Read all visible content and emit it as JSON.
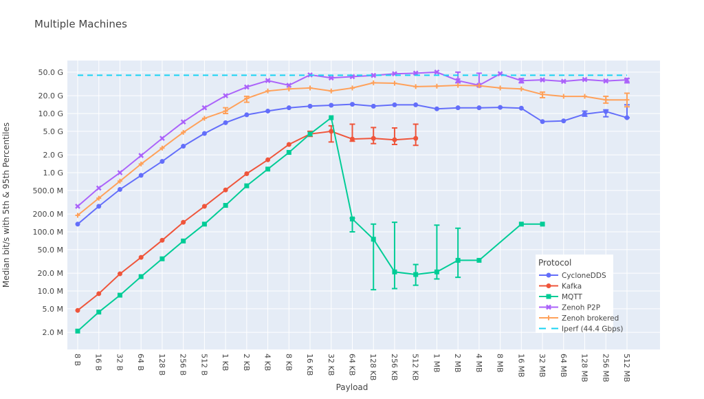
{
  "chart_data": {
    "type": "line",
    "title": "Multiple Machines",
    "xlabel": "Payload",
    "ylabel": "Median bit/s with 5th & 95th Percentiles",
    "yscale": "log",
    "ylim": [
      1500000.0,
      80000000000.0
    ],
    "categories": [
      "8 B",
      "16 B",
      "32 B",
      "64 B",
      "128 B",
      "256 B",
      "512 B",
      "1 KB",
      "2 KB",
      "4 KB",
      "8 KB",
      "16 KB",
      "32 KB",
      "64 KB",
      "128 KB",
      "256 KB",
      "512 KB",
      "1 MB",
      "2 MB",
      "4 MB",
      "8 MB",
      "16 MB",
      "32 MB",
      "64 MB",
      "128 MB",
      "256 MB",
      "512 MB"
    ],
    "yticks": [
      {
        "v": 50000000000.0,
        "label": "50.0 G"
      },
      {
        "v": 20000000000.0,
        "label": "20.0 G"
      },
      {
        "v": 10000000000.0,
        "label": "10.0 G"
      },
      {
        "v": 5000000000.0,
        "label": "5.0 G"
      },
      {
        "v": 2000000000.0,
        "label": "2.0 G"
      },
      {
        "v": 1000000000.0,
        "label": "1.0 G"
      },
      {
        "v": 500000000.0,
        "label": "500.0 M"
      },
      {
        "v": 200000000.0,
        "label": "200.0 M"
      },
      {
        "v": 100000000.0,
        "label": "100.0 M"
      },
      {
        "v": 50000000.0,
        "label": "50.0 M"
      },
      {
        "v": 20000000.0,
        "label": "20.0 M"
      },
      {
        "v": 10000000.0,
        "label": "10.0 M"
      },
      {
        "v": 5000000.0,
        "label": "5.0 M"
      },
      {
        "v": 2000000.0,
        "label": "2.0 M"
      }
    ],
    "legend_title": "Protocol",
    "legend_position": "bottom-right",
    "series": [
      {
        "name": "CycloneDDS",
        "color": "#636efa",
        "marker": "circle",
        "values": [
          135000000.0,
          270000000.0,
          520000000.0,
          900000000.0,
          1550000000.0,
          2800000000.0,
          4600000000.0,
          7000000000.0,
          9500000000.0,
          11000000000.0,
          12500000000.0,
          13300000000.0,
          13800000000.0,
          14300000000.0,
          13300000000.0,
          14000000000.0,
          14000000000.0,
          12000000000.0,
          12500000000.0,
          12500000000.0,
          12700000000.0,
          12300000000.0,
          7300000000.0,
          7500000000.0,
          9800000000.0,
          10800000000.0,
          8500000000.0
        ],
        "errors": {
          "24": [
            9000000000.0,
            11000000000.0
          ],
          "25": [
            8800000000.0,
            11500000000.0
          ],
          "26": [
            8500000000.0,
            14000000000.0
          ]
        }
      },
      {
        "name": "Kafka",
        "color": "#ef553b",
        "marker": "circle",
        "values": [
          4700000.0,
          9000000.0,
          19500000.0,
          37000000.0,
          72000000.0,
          145000000.0,
          270000000.0,
          510000000.0,
          960000000.0,
          1650000000.0,
          3000000000.0,
          4500000000.0,
          5000000000.0,
          3700000000.0,
          3800000000.0,
          3600000000.0,
          3800000000.0,
          null,
          null,
          null,
          null,
          null,
          null,
          null,
          null,
          null,
          null
        ],
        "errors": {
          "11": [
            4100000000.0,
            5000000000.0
          ],
          "12": [
            3300000000.0,
            6200000000.0
          ],
          "13": [
            3400000000.0,
            6600000000.0
          ],
          "14": [
            3100000000.0,
            5800000000.0
          ],
          "15": [
            3000000000.0,
            5700000000.0
          ],
          "16": [
            2900000000.0,
            6600000000.0
          ]
        }
      },
      {
        "name": "MQTT",
        "color": "#00cc96",
        "marker": "square",
        "values": [
          2100000.0,
          4400000.0,
          8500000.0,
          17500000.0,
          35000000.0,
          70000000.0,
          135000000.0,
          280000000.0,
          600000000.0,
          1150000000.0,
          2200000000.0,
          4500000000.0,
          8500000000.0,
          165000000.0,
          75000000.0,
          21000000.0,
          19000000.0,
          21000000.0,
          33000000.0,
          33000000.0,
          null,
          135000000.0,
          135000000.0,
          null,
          null,
          null,
          null
        ],
        "errors": {
          "13": [
            100000000.0,
            170000000.0
          ],
          "14": [
            10500000.0,
            135000000.0
          ],
          "15": [
            11000000.0,
            145000000.0
          ],
          "16": [
            12500000.0,
            28000000.0
          ],
          "17": [
            16000000.0,
            130000000.0
          ],
          "18": [
            17000000.0,
            115000000.0
          ]
        }
      },
      {
        "name": "Zenoh P2P",
        "color": "#ab63fa",
        "marker": "x",
        "values": [
          270000000.0,
          550000000.0,
          1000000000.0,
          1950000000.0,
          3800000000.0,
          7200000000.0,
          12500000000.0,
          20000000000.0,
          28000000000.0,
          36000000000.0,
          30000000000.0,
          45000000000.0,
          40000000000.0,
          42000000000.0,
          44000000000.0,
          47000000000.0,
          48000000000.0,
          50000000000.0,
          36000000000.0,
          30000000000.0,
          47000000000.0,
          36000000000.0,
          37000000000.0,
          35000000000.0,
          37500000000.0,
          35500000000.0,
          37000000000.0
        ],
        "errors": {
          "18": [
            33000000000.0,
            50000000000.0
          ],
          "19": [
            29000000000.0,
            48000000000.0
          ],
          "21": [
            33000000000.0,
            39000000000.0
          ],
          "26": [
            33000000000.0,
            39000000000.0
          ]
        }
      },
      {
        "name": "Zenoh brokered",
        "color": "#ffa15a",
        "marker": "cross",
        "values": [
          190000000.0,
          370000000.0,
          720000000.0,
          1400000000.0,
          2600000000.0,
          4800000000.0,
          8300000000.0,
          11000000000.0,
          18000000000.0,
          24000000000.0,
          26000000000.0,
          27000000000.0,
          24000000000.0,
          27000000000.0,
          33000000000.0,
          32500000000.0,
          28500000000.0,
          29000000000.0,
          30000000000.0,
          29500000000.0,
          27000000000.0,
          26000000000.0,
          21000000000.0,
          19500000000.0,
          19500000000.0,
          17000000000.0,
          17000000000.0
        ],
        "errors": {
          "7": [
            10000000000.0,
            12500000000.0
          ],
          "8": [
            15500000000.0,
            19500000000.0
          ],
          "22": [
            18500000000.0,
            23000000000.0
          ],
          "25": [
            15000000000.0,
            19500000000.0
          ],
          "26": [
            13000000000.0,
            22000000000.0
          ]
        }
      },
      {
        "name": "Iperf (44.4 Gbps)",
        "color": "#19d3f3",
        "dash": true,
        "constant": 44400000000.0
      }
    ]
  }
}
